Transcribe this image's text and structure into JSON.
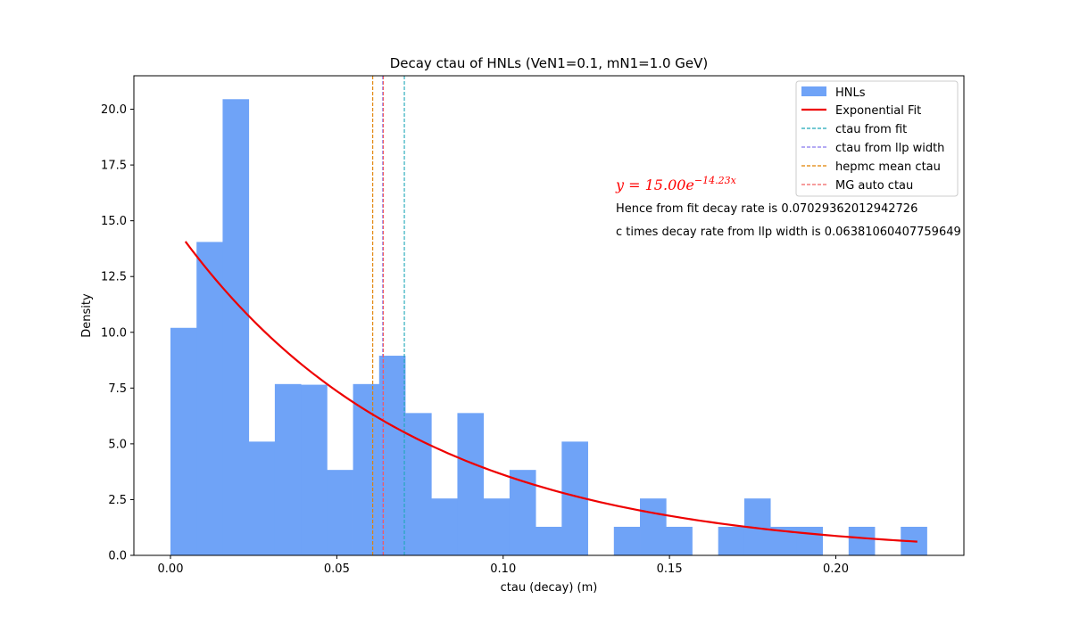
{
  "chart_data": {
    "type": "bar",
    "title": "Decay ctau of HNLs (VeN1=0.1, mN1=1.0 GeV)",
    "xlabel": "ctau (decay) (m)",
    "ylabel": "Density",
    "xlim": [
      -0.011,
      0.2385
    ],
    "ylim": [
      0,
      21.5
    ],
    "x_ticks": [
      0.0,
      0.05,
      0.1,
      0.15,
      0.2
    ],
    "x_tick_labels": [
      "0.00",
      "0.05",
      "0.10",
      "0.15",
      "0.20"
    ],
    "y_ticks": [
      0.0,
      2.5,
      5.0,
      7.5,
      10.0,
      12.5,
      15.0,
      17.5,
      20.0
    ],
    "y_tick_labels": [
      "0.0",
      "2.5",
      "5.0",
      "7.5",
      "10.0",
      "12.5",
      "15.0",
      "17.5",
      "20.0"
    ],
    "grid": false,
    "legend_position": "top-right",
    "histogram": {
      "name": "HNLs",
      "color": "#6fa3f7",
      "bin_start": 0.0,
      "bin_width": 0.00784,
      "values": [
        10.2,
        14.05,
        20.45,
        5.1,
        7.68,
        7.65,
        3.83,
        7.68,
        8.95,
        6.38,
        2.55,
        6.38,
        2.55,
        3.83,
        1.28,
        5.1,
        0,
        1.28,
        2.55,
        1.28,
        0,
        1.28,
        2.55,
        1.28,
        1.28,
        0,
        1.28,
        0,
        1.28
      ]
    },
    "fit": {
      "name": "Exponential Fit",
      "color": "#ee0000",
      "amplitude": 15.0,
      "rate": 14.23,
      "x_range": [
        0.0045,
        0.2245
      ],
      "equation_base": "y = 15.00e",
      "equation_exp": "−14.23x"
    },
    "vlines": [
      {
        "name": "ctau from fit",
        "x": 0.0703,
        "color": "#1fa8b8"
      },
      {
        "name": "ctau from llp width",
        "x": 0.0638,
        "color": "#8877ee"
      },
      {
        "name": "hepmc mean ctau",
        "x": 0.0608,
        "color": "#e08000"
      },
      {
        "name": "MG auto ctau",
        "x": 0.064,
        "color": "#f06060"
      }
    ],
    "annotations": [
      "Hence from fit  decay rate is 0.07029362012942726",
      "c times decay rate from llp width is 0.06381060407759649"
    ]
  }
}
